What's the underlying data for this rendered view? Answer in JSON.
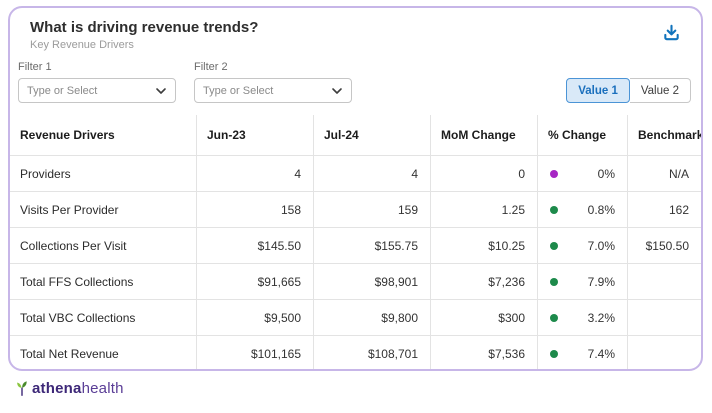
{
  "card": {
    "title": "What is driving revenue trends?",
    "subtitle": "Key Revenue Drivers"
  },
  "filters": [
    {
      "label": "Filter 1",
      "placeholder": "Type or Select"
    },
    {
      "label": "Filter 2",
      "placeholder": "Type or Select"
    }
  ],
  "value_toggle": {
    "options": [
      {
        "label": "Value 1",
        "selected": true
      },
      {
        "label": "Value 2",
        "selected": false
      }
    ]
  },
  "table": {
    "columns": [
      "Revenue Drivers",
      "Jun-23",
      "Jul-24",
      "MoM Change",
      "% Change",
      "Benchmark"
    ],
    "rows": [
      {
        "driver": "Providers",
        "jun23": "4",
        "jul24": "4",
        "mom_change": "0",
        "pct_change": "0%",
        "dot_color": "#a727c4",
        "benchmark": "N/A"
      },
      {
        "driver": "Visits Per Provider",
        "jun23": "158",
        "jul24": "159",
        "mom_change": "1.25",
        "pct_change": "0.8%",
        "dot_color": "#1d8a4b",
        "benchmark": "162"
      },
      {
        "driver": "Collections Per Visit",
        "jun23": "$145.50",
        "jul24": "$155.75",
        "mom_change": "$10.25",
        "pct_change": "7.0%",
        "dot_color": "#1d8a4b",
        "benchmark": "$150.50"
      },
      {
        "driver": "Total FFS Collections",
        "jun23": "$91,665",
        "jul24": "$98,901",
        "mom_change": "$7,236",
        "pct_change": "7.9%",
        "dot_color": "#1d8a4b",
        "benchmark": ""
      },
      {
        "driver": "Total VBC Collections",
        "jun23": "$9,500",
        "jul24": "$9,800",
        "mom_change": "$300",
        "pct_change": "3.2%",
        "dot_color": "#1d8a4b",
        "benchmark": ""
      },
      {
        "driver": "Total Net Revenue",
        "jun23": "$101,165",
        "jul24": "$108,701",
        "mom_change": "$7,536",
        "pct_change": "7.4%",
        "dot_color": "#1d8a4b",
        "benchmark": ""
      }
    ]
  },
  "footer": {
    "brand_bold": "athena",
    "brand_light": "health"
  },
  "colors": {
    "card_border": "#c7b6e8",
    "accent_blue": "#1173bc",
    "toggle_selected_bg": "#d9e9f8",
    "toggle_selected_text": "#1a6fbd",
    "positive_dot": "#1d8a4b",
    "neutral_dot": "#a727c4",
    "brand_purple": "#3d2878"
  }
}
